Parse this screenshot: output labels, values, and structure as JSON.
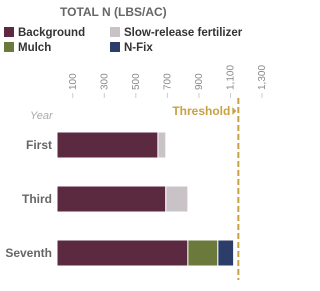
{
  "chart_data": {
    "type": "stacked-bar-horizontal",
    "title": "TOTAL N (LBS/AC)",
    "y_label": "Year",
    "categories": [
      "First",
      "Third",
      "Seventh"
    ],
    "series": [
      {
        "name": "Background",
        "color": "#5b2a40",
        "values": [
          640,
          690,
          830
        ]
      },
      {
        "name": "Slow-release fertilizer",
        "color": "#c9c2c7",
        "values": [
          50,
          140,
          null
        ]
      },
      {
        "name": "Mulch",
        "color": "#6b7a3b",
        "values": [
          null,
          null,
          190
        ]
      },
      {
        "name": "N-Fix",
        "color": "#2c3d6a",
        "values": [
          null,
          null,
          100
        ]
      }
    ],
    "xlim": [
      0,
      1300
    ],
    "xticks": [
      100,
      300,
      500,
      700,
      900,
      {
        "value": 1100,
        "label": "1,100"
      },
      {
        "value": 1300,
        "label": "1,300"
      }
    ],
    "threshold": {
      "value": 1150,
      "label": "Threshold",
      "color": "#c9a043"
    }
  }
}
